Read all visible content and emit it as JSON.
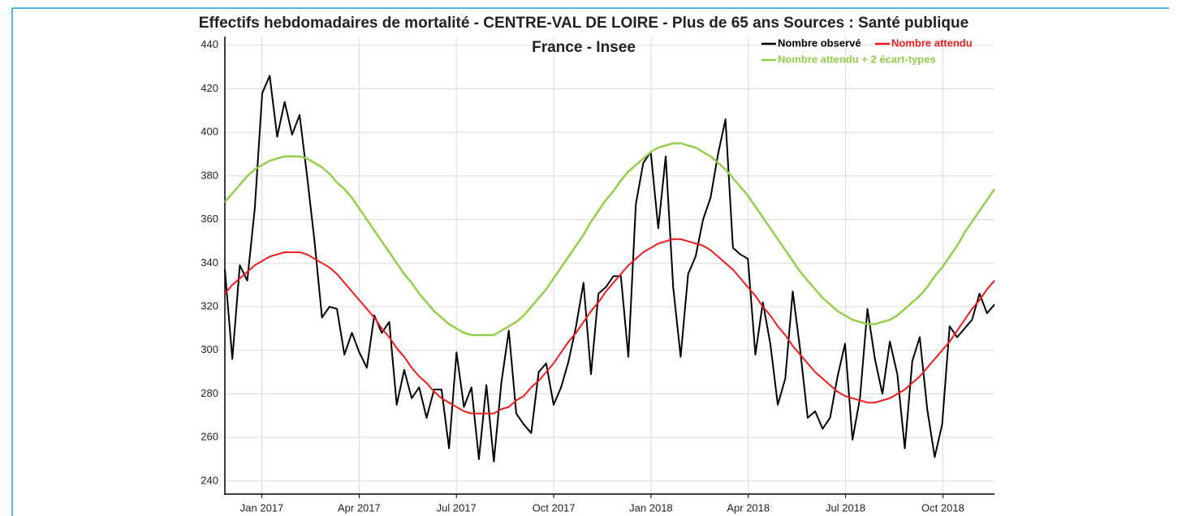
{
  "chart_data": {
    "type": "line",
    "title": "Effectifs hebdomadaires de mortalité - CENTRE-VAL DE LOIRE - Plus de 65 ans Sources : Santé publique France - Insee",
    "x": [
      2016.905,
      2016.9242,
      2016.9434,
      2016.9626,
      2016.9818,
      2017.001,
      2017.0202,
      2017.0394,
      2017.0586,
      2017.0778,
      2017.097,
      2017.1162,
      2017.1354,
      2017.1546,
      2017.1738,
      2017.193,
      2017.2122,
      2017.2314,
      2017.2506,
      2017.2698,
      2017.289,
      2017.3082,
      2017.3274,
      2017.3466,
      2017.3658,
      2017.385,
      2017.4042,
      2017.4234,
      2017.4426,
      2017.4618,
      2017.481,
      2017.5002,
      2017.5194,
      2017.5386,
      2017.5578,
      2017.577,
      2017.5962,
      2017.6154,
      2017.6346,
      2017.6538,
      2017.673,
      2017.6922,
      2017.7114,
      2017.7306,
      2017.7498,
      2017.769,
      2017.7882,
      2017.8074,
      2017.8266,
      2017.8458,
      2017.865,
      2017.8842,
      2017.9034,
      2017.9226,
      2017.9418,
      2017.961,
      2017.9802,
      2017.9994,
      2018.0186,
      2018.0378,
      2018.057,
      2018.0762,
      2018.0954,
      2018.1146,
      2018.1338,
      2018.153,
      2018.1722,
      2018.1914,
      2018.2106,
      2018.2298,
      2018.249,
      2018.2682,
      2018.2874,
      2018.3066,
      2018.3258,
      2018.345,
      2018.3642,
      2018.3834,
      2018.4026,
      2018.4218,
      2018.441,
      2018.4602,
      2018.4794,
      2018.4986,
      2018.5178,
      2018.537,
      2018.5562,
      2018.5754,
      2018.5946,
      2018.6138,
      2018.633,
      2018.6522,
      2018.6714,
      2018.6906,
      2018.7098,
      2018.729,
      2018.7482,
      2018.7674,
      2018.7866,
      2018.8058,
      2018.825,
      2018.8442,
      2018.8634,
      2018.8826
    ],
    "series": [
      {
        "name": "Nombre observé",
        "color": "#000000",
        "width": 2,
        "values": [
          337,
          296,
          339,
          332,
          365,
          418,
          426,
          398,
          414,
          399,
          408,
          380,
          350,
          315,
          320,
          319,
          298,
          308,
          299,
          292,
          316,
          308,
          313,
          275,
          291,
          278,
          283,
          269,
          282,
          282,
          255,
          299,
          274,
          283,
          250,
          284,
          249,
          285,
          309,
          271,
          266,
          262,
          290,
          294,
          275,
          283,
          295,
          311,
          331,
          289,
          326,
          329,
          334,
          334,
          297,
          367,
          386,
          391,
          356,
          389,
          329,
          297,
          335,
          343,
          360,
          370,
          390,
          406,
          347,
          344,
          342,
          298,
          322,
          303,
          275,
          287,
          327,
          300,
          269,
          272,
          264,
          269,
          288,
          303,
          259,
          278,
          319,
          296,
          280,
          304,
          289,
          255,
          295,
          306,
          273,
          251,
          266,
          311,
          306,
          310,
          314,
          326,
          317,
          321
        ]
      },
      {
        "name": "Nombre attendu",
        "color": "#ee1c1c",
        "width": 2,
        "values": [
          326,
          330,
          333,
          336,
          339,
          341,
          343,
          344,
          345,
          345,
          345,
          344,
          342,
          340,
          338,
          335,
          331,
          327,
          323,
          319,
          315,
          310,
          306,
          301,
          297,
          292,
          288,
          285,
          281,
          278,
          276,
          274,
          272,
          271,
          271,
          271,
          271,
          273,
          274,
          277,
          279,
          283,
          286,
          290,
          294,
          299,
          304,
          308,
          313,
          318,
          322,
          327,
          331,
          335,
          339,
          342,
          345,
          347,
          349,
          350,
          351,
          351,
          350,
          349,
          348,
          346,
          343,
          340,
          337,
          333,
          329,
          325,
          320,
          316,
          311,
          307,
          302,
          298,
          294,
          290,
          287,
          284,
          281,
          279,
          278,
          277,
          276,
          276,
          277,
          278,
          280,
          282,
          285,
          288,
          292,
          296,
          300,
          304,
          309,
          314,
          319,
          323,
          328,
          332
        ]
      },
      {
        "name": "Nombre attendu + 2 écart-types",
        "color": "#93cf4a",
        "width": 2.5,
        "values": [
          368,
          372,
          376,
          380,
          383,
          385,
          387,
          388,
          389,
          389,
          389,
          388,
          386,
          384,
          381,
          377,
          374,
          370,
          365,
          360,
          355,
          350,
          345,
          340,
          335,
          331,
          326,
          322,
          318,
          315,
          312,
          310,
          308,
          307,
          307,
          307,
          307,
          309,
          311,
          313,
          316,
          320,
          324,
          328,
          333,
          338,
          343,
          348,
          353,
          359,
          364,
          369,
          373,
          378,
          382,
          385,
          388,
          391,
          393,
          394,
          395,
          395,
          394,
          393,
          391,
          389,
          386,
          383,
          379,
          375,
          371,
          366,
          361,
          356,
          351,
          346,
          341,
          336,
          332,
          328,
          324,
          321,
          318,
          316,
          314,
          313,
          312,
          312,
          313,
          314,
          316,
          319,
          322,
          325,
          329,
          334,
          338,
          343,
          348,
          354,
          359,
          364,
          369,
          374
        ]
      }
    ],
    "xlim": [
      2016.905,
      2018.8826
    ],
    "xticks": [
      {
        "value": 2017,
        "label": "Jan 2017"
      },
      {
        "value": 2017.25,
        "label": "Apr 2017"
      },
      {
        "value": 2017.5,
        "label": "Jul 2017"
      },
      {
        "value": 2017.75,
        "label": "Oct 2017"
      },
      {
        "value": 2018,
        "label": "Jan 2018"
      },
      {
        "value": 2018.25,
        "label": "Apr 2018"
      },
      {
        "value": 2018.5,
        "label": "Jul 2018"
      },
      {
        "value": 2018.75,
        "label": "Oct 2018"
      }
    ],
    "ylim": [
      234,
      444
    ],
    "yticks": [
      240,
      260,
      280,
      300,
      320,
      340,
      360,
      380,
      400,
      420,
      440
    ],
    "grid": true
  }
}
